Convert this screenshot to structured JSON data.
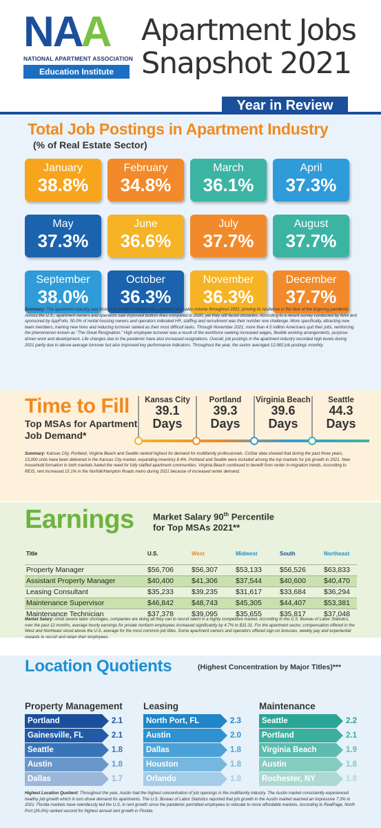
{
  "header": {
    "logo_line1": "NATIONAL APARTMENT ASSOCIATION",
    "logo_line2": "Education Institute",
    "title_line1": "Apartment Jobs",
    "title_line2": "Snapshot 2021",
    "year_in_review": "Year in Review"
  },
  "job_postings": {
    "title": "Total Job Postings in Apartment Industry",
    "subtitle": "(% of Real Estate Sector)",
    "months": [
      {
        "month": "January",
        "value": "38.8%",
        "color": "#f7a51d"
      },
      {
        "month": "February",
        "value": "34.8%",
        "color": "#f28a2b"
      },
      {
        "month": "March",
        "value": "36.1%",
        "color": "#3cb4a3"
      },
      {
        "month": "April",
        "value": "37.3%",
        "color": "#2f9bd8"
      },
      {
        "month": "May",
        "value": "37.3%",
        "color": "#1b63ad"
      },
      {
        "month": "June",
        "value": "36.6%",
        "color": "#f5b325"
      },
      {
        "month": "July",
        "value": "37.7%",
        "color": "#f28a2b"
      },
      {
        "month": "August",
        "value": "37.7%",
        "color": "#3cb4a3"
      },
      {
        "month": "September",
        "value": "38.0%",
        "color": "#2f9bd8"
      },
      {
        "month": "October",
        "value": "36.3%",
        "color": "#1b63ad"
      },
      {
        "month": "November",
        "value": "36.3%",
        "color": "#f5b325"
      },
      {
        "month": "December",
        "value": "37.7%",
        "color": "#f28a2b"
      }
    ],
    "summary_label": "Summary:",
    "summary": "The apartment industry saw historical growth in rental rates, demand and sales volume throughout 2021, proving its resilience in the face of the lingering pandemic. Across the U.S., apartment owners and operators saw improved bottom lines compared to 2020, yet they still faced obstacles. According to a recent survey conducted by NAA and sponsored by AppFolio, 50.0% of rental housing owners and operators indicated HR, staffing and recruitment was their number one challenge. More specifically, attracting new team members, training new hires and reducing turnover ranked as their most difficult tasks. Through November 2021, more than 4.5 million Americans quit their jobs, reinforcing the phenomenon known as \"The Great Resignation.\" High employee turnover was a result of the workforce seeking increased wages, flexible working arrangements, purpose-driven work and development. Life changes due to the pandemic have also increased resignations. Overall, job postings in the apartment industry recorded high levels during 2021 partly due to above-average turnover but also improved key performance indicators. Throughout the year, the sector averaged 12,982 job postings monthly."
  },
  "time_to_fill": {
    "title": "Time to Fill",
    "subtitle": "Top MSAs for Apartment Job Demand*",
    "msas": [
      {
        "city": "Kansas City",
        "days": "39.1",
        "unit": "Days"
      },
      {
        "city": "Portland",
        "days": "39.3",
        "unit": "Days"
      },
      {
        "city": "Virginia Beach",
        "days": "39.6",
        "unit": "Days"
      },
      {
        "city": "Seattle",
        "days": "44.3",
        "unit": "Days"
      }
    ],
    "summary_label": "Summary:",
    "summary": "Kansas City, Portland, Virginia Beach and Seattle ranked highest for demand for multifamily professionals. CoStar data showed that during the past three years, 13,000 units have been delivered in the Kansas City market, expanding inventory 8.4%. Portland and Seattle were included among the top markets for job growth in 2021. New household formation in both markets fueled the need for fully staffed apartment communities. Virginia Beach continued to benefit from renter in-migration trends. According to REIS, rent increased 15.1% in the Norfolk/Hampton Roads metro during 2021 because of increased renter demand."
  },
  "earnings": {
    "title": "Earnings",
    "subtitle_line1": "Market Salary 90",
    "subtitle_sup": "th",
    "subtitle_line1b": " Percentile",
    "subtitle_line2": "for Top MSAs 2021**",
    "columns": [
      "Title",
      "U.S.",
      "West",
      "Midwest",
      "South",
      "Northeast"
    ],
    "rows": [
      [
        "Property Manager",
        "$56,706",
        "$56,307",
        "$53,133",
        "$56,526",
        "$63,833"
      ],
      [
        "Assistant Property Manager",
        "$40,400",
        "$41,306",
        "$37,544",
        "$40,600",
        "$40,470"
      ],
      [
        "Leasing Consultant",
        "$35,233",
        "$39,235",
        "$31,617",
        "$33,684",
        "$36,294"
      ],
      [
        "Maintenance Supervisor",
        "$46,842",
        "$48,743",
        "$45,305",
        "$44,407",
        "$53,381"
      ],
      [
        "Maintenance Technician",
        "$37,378",
        "$39,095",
        "$35,655",
        "$35,817",
        "$37,048"
      ]
    ],
    "summary_label": "Market Salary:",
    "summary": "Amid severe labor shortages, companies are doing all they can to recruit talent in a highly competitive market. According to the U.S. Bureau of Labor Statistics, over the past 12 months, average hourly earnings for private nonfarm employees increased significantly by 4.7% to $31.31. For the apartment sector, compensation offered in the West and Northeast stood above the U.S. average for the most common job titles. Some apartment owners and operators offered sign-on bonuses, weekly pay and experiential rewards to recruit and retain their employees."
  },
  "location_quotients": {
    "title": "Location Quotients",
    "subtitle": "(Highest Concentration by Major Titles)***",
    "groups": [
      {
        "heading": "Property Management",
        "items": [
          {
            "city": "Portland",
            "value": "2.1",
            "color": "#1b4f9c"
          },
          {
            "city": "Gainesville, FL",
            "value": "2.1",
            "color": "#215aa6"
          },
          {
            "city": "Seattle",
            "value": "1.8",
            "color": "#3a74b8"
          },
          {
            "city": "Austin",
            "value": "1.8",
            "color": "#6a97c9"
          },
          {
            "city": "Dallas",
            "value": "1.7",
            "color": "#9ab7da"
          }
        ]
      },
      {
        "heading": "Leasing",
        "items": [
          {
            "city": "North Port, FL",
            "value": "2.3",
            "color": "#1f86c8"
          },
          {
            "city": "Austin",
            "value": "2.0",
            "color": "#2e92d0"
          },
          {
            "city": "Dallas",
            "value": "1.8",
            "color": "#4ca2d6"
          },
          {
            "city": "Houston",
            "value": "1.8",
            "color": "#75b7df"
          },
          {
            "city": "Orlando",
            "value": "1.8",
            "color": "#a3cde9"
          }
        ]
      },
      {
        "heading": "Maintenance",
        "items": [
          {
            "city": "Seattle",
            "value": "2.2",
            "color": "#2aa596"
          },
          {
            "city": "Portland",
            "value": "2.1",
            "color": "#3daf9f"
          },
          {
            "city": "Virginia Beach",
            "value": "1.9",
            "color": "#5cbcae"
          },
          {
            "city": "Austin",
            "value": "1.8",
            "color": "#84cbc0"
          },
          {
            "city": "Rochester, NY",
            "value": "1.8",
            "color": "#acdad3"
          }
        ]
      }
    ],
    "summary_label": "Highest Location Quotient:",
    "summary": "Throughout the year, Austin had the highest concentration of job openings in the multifamily industry. The Austin market consistently experienced healthy job growth which in turn drove demand for apartments. The U.S. Bureau of Labor Statistics reported that job growth in the Austin market reached an impressive 7.3% in 2021. Florida markets have relentlessly led the U.S. in rent growth since the pandemic permitted employees to relocate to more affordable markets. According to RealPage, North Port (26.0%) ranked second for highest annual rent growth in Florida."
  },
  "colors": {
    "navy": "#1b4f9c",
    "orange": "#f08a1d",
    "green": "#6db33f",
    "sky": "#1d8fd1"
  }
}
